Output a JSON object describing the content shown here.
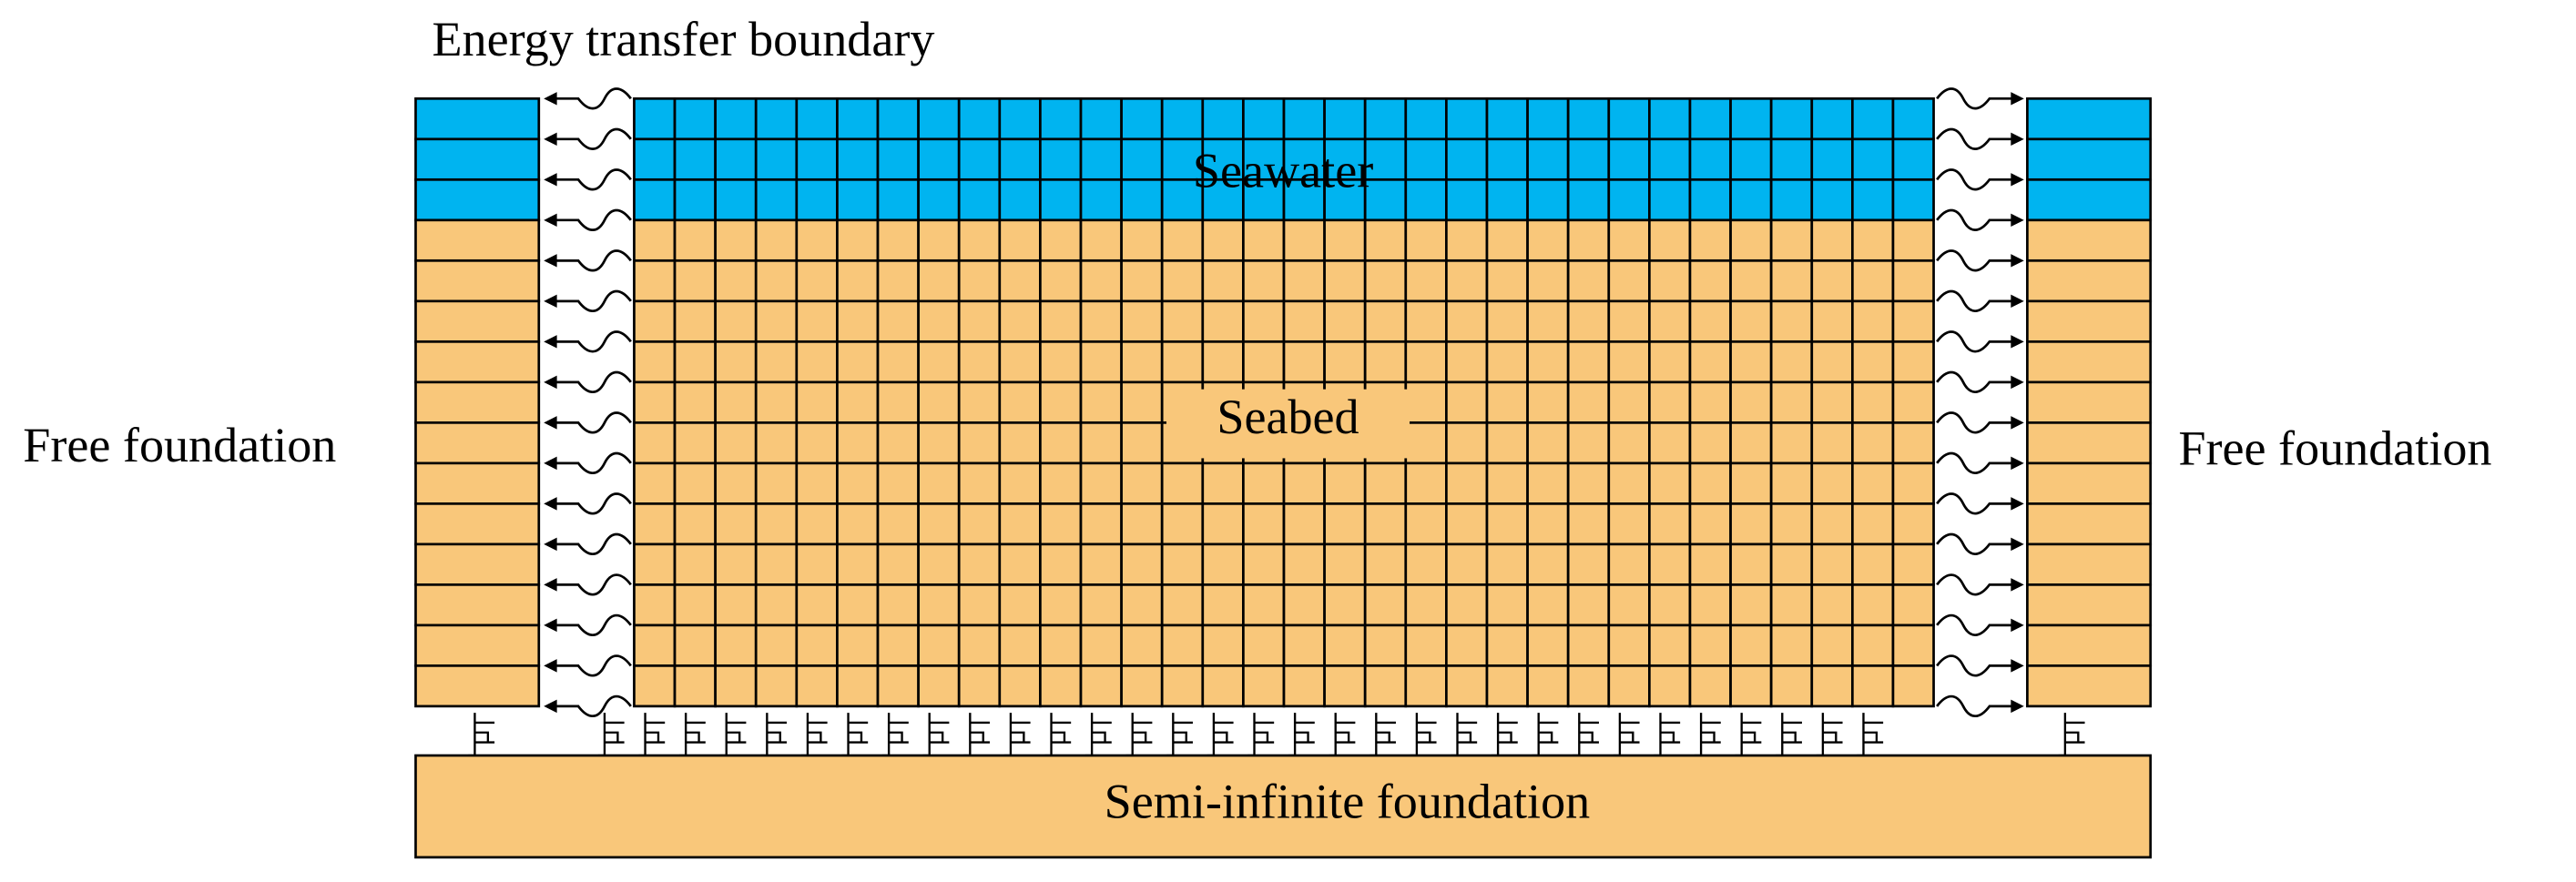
{
  "title": "Energy transfer boundary",
  "labels": {
    "seawater": "Seawater",
    "seabed": "Seabed",
    "left_foundation": "Free foundation",
    "right_foundation": "Free foundation",
    "semi_infinite": "Semi-infinite foundation"
  }
}
